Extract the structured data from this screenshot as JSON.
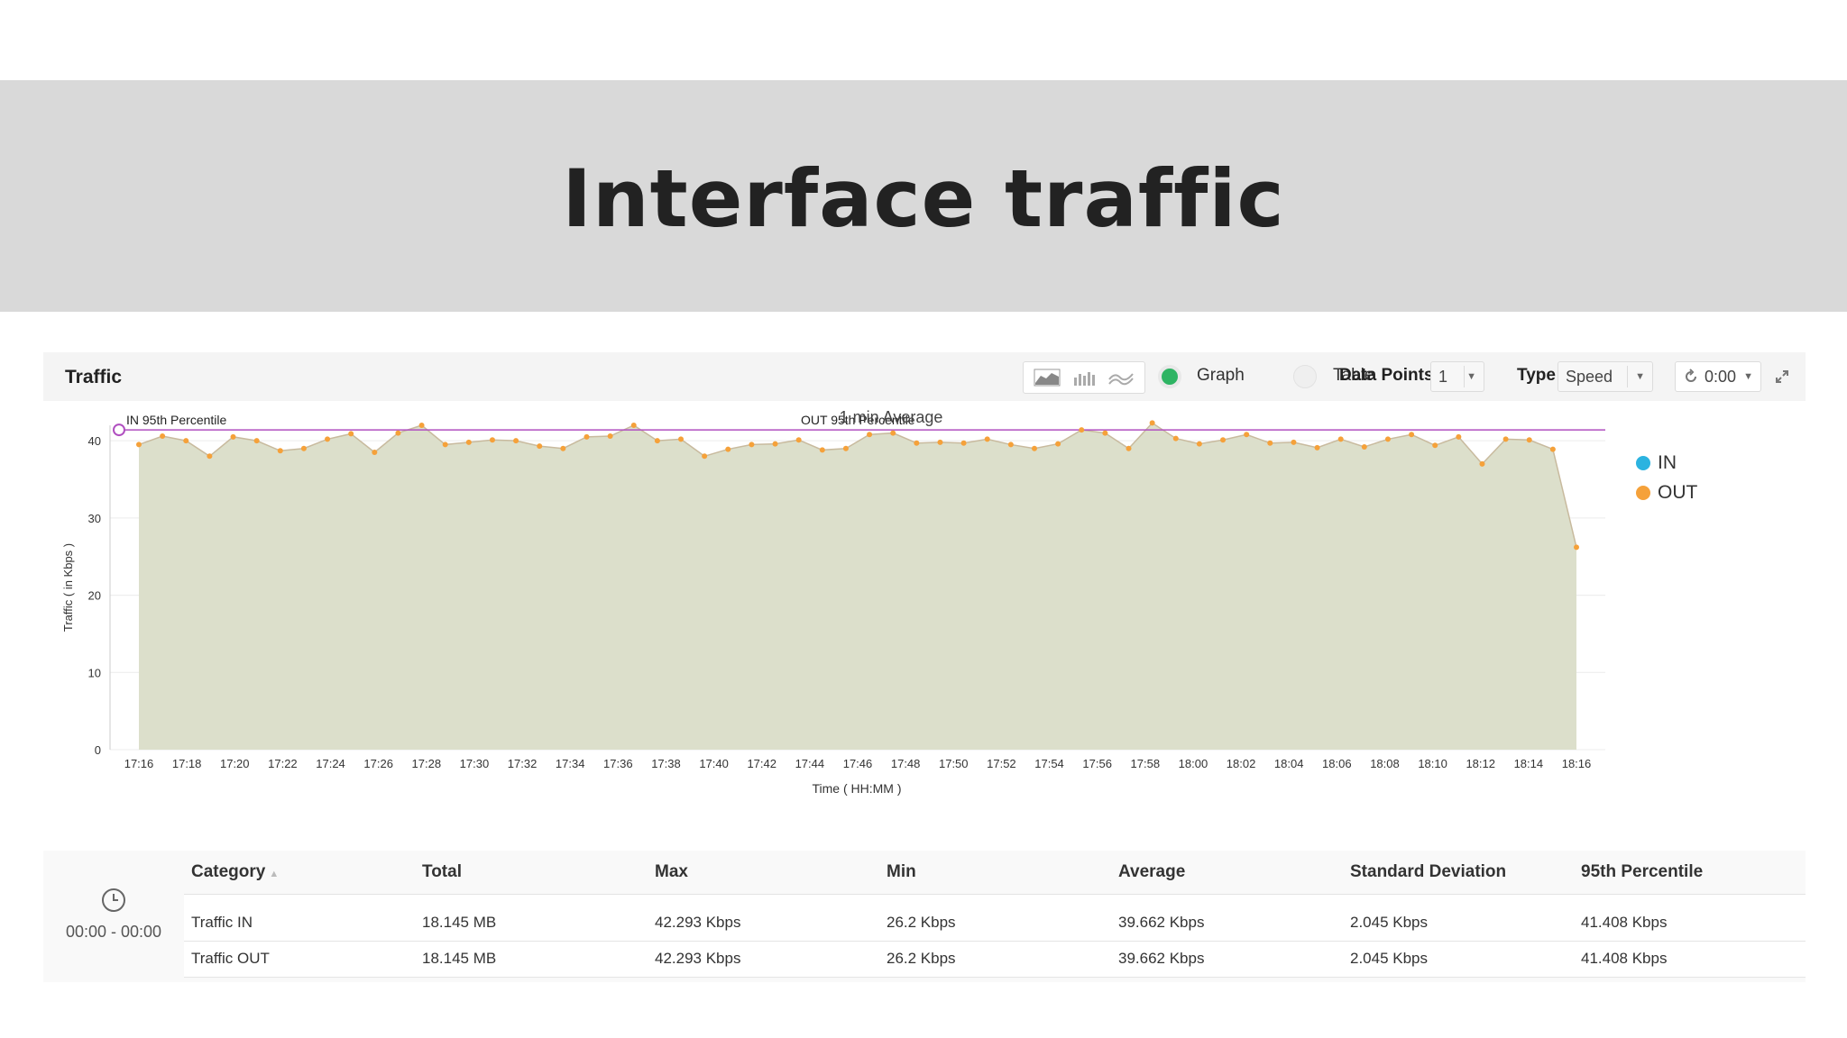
{
  "banner": {
    "title": "Interface traffic"
  },
  "panel": {
    "title": "Traffic",
    "view_options": [
      "Graph",
      "Table"
    ],
    "selected_view": "Graph",
    "data_points_label": "Data Points",
    "data_points_value": "1",
    "type_label": "Type",
    "type_value": "Speed",
    "time_value": "0:00",
    "icons": [
      "area-chart-icon",
      "bar-chart-icon",
      "line-chart-icon",
      "refresh-icon",
      "expand-icon"
    ]
  },
  "chart_data": {
    "type": "area",
    "title": "1 min Average",
    "xlabel": "Time ( HH:MM )",
    "ylabel": "Traffic ( in Kbps )",
    "ylim": [
      0,
      42
    ],
    "yticks": [
      0,
      10,
      20,
      30,
      40
    ],
    "grid": true,
    "legend_position": "right",
    "x_ticks": [
      "17:16",
      "17:18",
      "17:20",
      "17:22",
      "17:24",
      "17:26",
      "17:28",
      "17:30",
      "17:32",
      "17:34",
      "17:36",
      "17:38",
      "17:40",
      "17:42",
      "17:44",
      "17:46",
      "17:48",
      "17:50",
      "17:52",
      "17:54",
      "17:56",
      "17:58",
      "18:00",
      "18:02",
      "18:04",
      "18:06",
      "18:08",
      "18:10",
      "18:12",
      "18:14",
      "18:16"
    ],
    "x_start": "17:16",
    "x_step_minutes": 1,
    "series": [
      {
        "name": "IN",
        "color": "#2bb3e0",
        "values": [
          39.5,
          40.6,
          40.0,
          38.0,
          40.5,
          40.0,
          38.7,
          39.0,
          40.2,
          40.9,
          38.5,
          41.0,
          42.0,
          39.5,
          39.8,
          40.1,
          40.0,
          39.3,
          39.0,
          40.5,
          40.6,
          42.0,
          40.0,
          40.2,
          38.0,
          38.9,
          39.5,
          39.6,
          40.1,
          38.8,
          39.0,
          40.8,
          41.0,
          39.7,
          39.8,
          39.7,
          40.2,
          39.5,
          39.0,
          39.6,
          41.4,
          41.0,
          39.0,
          42.3,
          40.3,
          39.6,
          40.1,
          40.8,
          39.7,
          39.8,
          39.1,
          40.2,
          39.2,
          40.2,
          40.8,
          39.4,
          40.5,
          37.0,
          40.2,
          40.1,
          38.9,
          26.2
        ]
      },
      {
        "name": "OUT",
        "color": "#f5a13a",
        "values": [
          39.5,
          40.6,
          40.0,
          38.0,
          40.5,
          40.0,
          38.7,
          39.0,
          40.2,
          40.9,
          38.5,
          41.0,
          42.0,
          39.5,
          39.8,
          40.1,
          40.0,
          39.3,
          39.0,
          40.5,
          40.6,
          42.0,
          40.0,
          40.2,
          38.0,
          38.9,
          39.5,
          39.6,
          40.1,
          38.8,
          39.0,
          40.8,
          41.0,
          39.7,
          39.8,
          39.7,
          40.2,
          39.5,
          39.0,
          39.6,
          41.4,
          41.0,
          39.0,
          42.3,
          40.3,
          39.6,
          40.1,
          40.8,
          39.7,
          39.8,
          39.1,
          40.2,
          39.2,
          40.2,
          40.8,
          39.4,
          40.5,
          37.0,
          40.2,
          40.1,
          38.9,
          26.2
        ]
      }
    ],
    "annotations": [
      {
        "label": "IN 95th Percentile",
        "value": 41.408
      },
      {
        "label": "OUT 95th Percentile",
        "value": 41.408
      }
    ],
    "area_color": "#dcdfcb",
    "line_color": "#c8ba9e",
    "point_color": "#f5a13a",
    "percentile_color": "#b04fc0"
  },
  "stats_table": {
    "time_range": "00:00 - 00:00",
    "columns": [
      "Category",
      "Total",
      "Max",
      "Min",
      "Average",
      "Standard Deviation",
      "95th Percentile"
    ],
    "rows": [
      [
        "Traffic IN",
        "18.145 MB",
        "42.293 Kbps",
        "26.2 Kbps",
        "39.662 Kbps",
        "2.045 Kbps",
        "41.408 Kbps"
      ],
      [
        "Traffic OUT",
        "18.145 MB",
        "42.293 Kbps",
        "26.2 Kbps",
        "39.662 Kbps",
        "2.045 Kbps",
        "41.408 Kbps"
      ]
    ]
  }
}
